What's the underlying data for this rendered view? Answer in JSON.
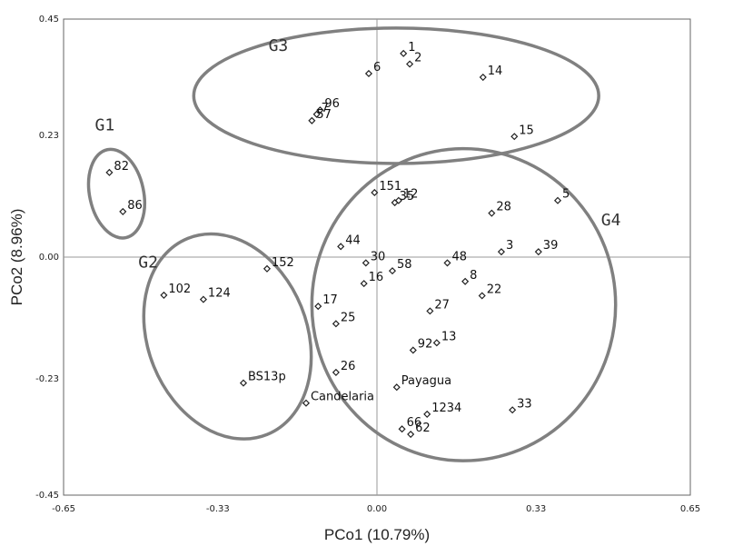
{
  "chart_data": {
    "type": "scatter",
    "xlabel": "PCo1 (10.79%)",
    "ylabel": "PCo2 (8.96%)",
    "xlim": [
      -0.65,
      0.65
    ],
    "ylim": [
      -0.45,
      0.45
    ],
    "x_ticks": [
      "-0.65",
      "-0.33",
      "0.00",
      "0.33",
      "0.65"
    ],
    "x_tick_values": [
      -0.65,
      -0.33,
      0.0,
      0.33,
      0.65
    ],
    "y_ticks": [
      "0.45",
      "0.23",
      "0.00",
      "-0.23",
      "-0.45"
    ],
    "y_tick_values": [
      0.45,
      0.23,
      0.0,
      -0.23,
      -0.45
    ],
    "zero_lines": true,
    "grid": false,
    "marker": "diamond",
    "points": [
      {
        "label": "1",
        "x": 0.055,
        "y": 0.385
      },
      {
        "label": "2",
        "x": 0.068,
        "y": 0.365
      },
      {
        "label": "6",
        "x": -0.017,
        "y": 0.347
      },
      {
        "label": "14",
        "x": 0.22,
        "y": 0.34
      },
      {
        "label": "7",
        "x": -0.125,
        "y": 0.27
      },
      {
        "label": "96",
        "x": -0.118,
        "y": 0.278
      },
      {
        "label": "57",
        "x": -0.135,
        "y": 0.258
      },
      {
        "label": "15",
        "x": 0.285,
        "y": 0.228
      },
      {
        "label": "82",
        "x": -0.555,
        "y": 0.16
      },
      {
        "label": "86",
        "x": -0.527,
        "y": 0.086
      },
      {
        "label": "151",
        "x": -0.005,
        "y": 0.122
      },
      {
        "label": "35",
        "x": 0.037,
        "y": 0.103
      },
      {
        "label": "12",
        "x": 0.045,
        "y": 0.107
      },
      {
        "label": "5",
        "x": 0.375,
        "y": 0.107
      },
      {
        "label": "28",
        "x": 0.238,
        "y": 0.083
      },
      {
        "label": "44",
        "x": -0.075,
        "y": 0.02
      },
      {
        "label": "3",
        "x": 0.258,
        "y": 0.01
      },
      {
        "label": "39",
        "x": 0.335,
        "y": 0.01
      },
      {
        "label": "48",
        "x": 0.146,
        "y": -0.011
      },
      {
        "label": "30",
        "x": -0.023,
        "y": -0.011
      },
      {
        "label": "58",
        "x": 0.032,
        "y": -0.026
      },
      {
        "label": "152",
        "x": -0.228,
        "y": -0.022
      },
      {
        "label": "16",
        "x": -0.027,
        "y": -0.05
      },
      {
        "label": "8",
        "x": 0.183,
        "y": -0.046
      },
      {
        "label": "102",
        "x": -0.442,
        "y": -0.072
      },
      {
        "label": "124",
        "x": -0.36,
        "y": -0.08
      },
      {
        "label": "22",
        "x": 0.218,
        "y": -0.073
      },
      {
        "label": "17",
        "x": -0.122,
        "y": -0.093
      },
      {
        "label": "27",
        "x": 0.11,
        "y": -0.102
      },
      {
        "label": "25",
        "x": -0.085,
        "y": -0.126
      },
      {
        "label": "92",
        "x": 0.075,
        "y": -0.176
      },
      {
        "label": "13",
        "x": 0.124,
        "y": -0.162
      },
      {
        "label": "26",
        "x": -0.085,
        "y": -0.218
      },
      {
        "label": "BS13p",
        "x": -0.277,
        "y": -0.238
      },
      {
        "label": "Payagua",
        "x": 0.041,
        "y": -0.246
      },
      {
        "label": "Candelaria",
        "x": -0.147,
        "y": -0.276
      },
      {
        "label": "1234",
        "x": 0.104,
        "y": -0.297
      },
      {
        "label": "33",
        "x": 0.281,
        "y": -0.289
      },
      {
        "label": "66",
        "x": 0.052,
        "y": -0.325
      },
      {
        "label": "62",
        "x": 0.07,
        "y": -0.335
      }
    ],
    "groups": [
      {
        "label": "G1",
        "cx": -0.54,
        "cy": 0.12,
        "rx": 0.056,
        "ry": 0.085,
        "angle": -12
      },
      {
        "label": "G2",
        "cx": -0.31,
        "cy": -0.15,
        "rx": 0.165,
        "ry": 0.2,
        "angle": -22
      },
      {
        "label": "G3",
        "cx": 0.04,
        "cy": 0.305,
        "rx": 0.42,
        "ry": 0.128,
        "angle": 0
      },
      {
        "label": "G4",
        "cx": 0.18,
        "cy": -0.09,
        "rx": 0.315,
        "ry": 0.295,
        "angle": 0
      }
    ],
    "group_labels": [
      {
        "label": "G1",
        "x": -0.585,
        "y": 0.24
      },
      {
        "label": "G2",
        "x": -0.495,
        "y": -0.02
      },
      {
        "label": "G3",
        "x": -0.225,
        "y": 0.39
      },
      {
        "label": "G4",
        "x": 0.465,
        "y": 0.06
      }
    ]
  }
}
